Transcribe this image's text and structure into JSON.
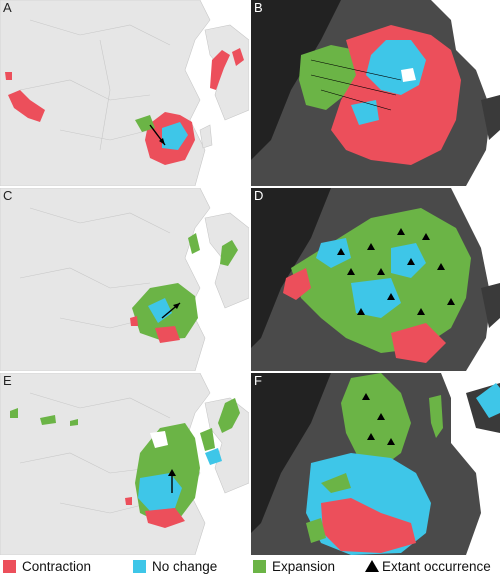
{
  "panels": [
    {
      "id": "A",
      "label": "A"
    },
    {
      "id": "B",
      "label": "B"
    },
    {
      "id": "C",
      "label": "C"
    },
    {
      "id": "D",
      "label": "D"
    },
    {
      "id": "E",
      "label": "E"
    },
    {
      "id": "F",
      "label": "F"
    }
  ],
  "colors": {
    "contraction": "#ec4f5b",
    "no_change": "#3ec6e8",
    "expansion": "#6bb446",
    "extant": "#000000",
    "land": "#e6e6e6",
    "sea": "#ffffff",
    "border": "#c8c8c8"
  },
  "legend": {
    "contraction": "Contraction",
    "no_change": "No change",
    "expansion": "Expansion",
    "extant": "Extant occurrence"
  },
  "icons": {
    "extant": "black-triangle-icon",
    "shift": "arrow-icon"
  }
}
